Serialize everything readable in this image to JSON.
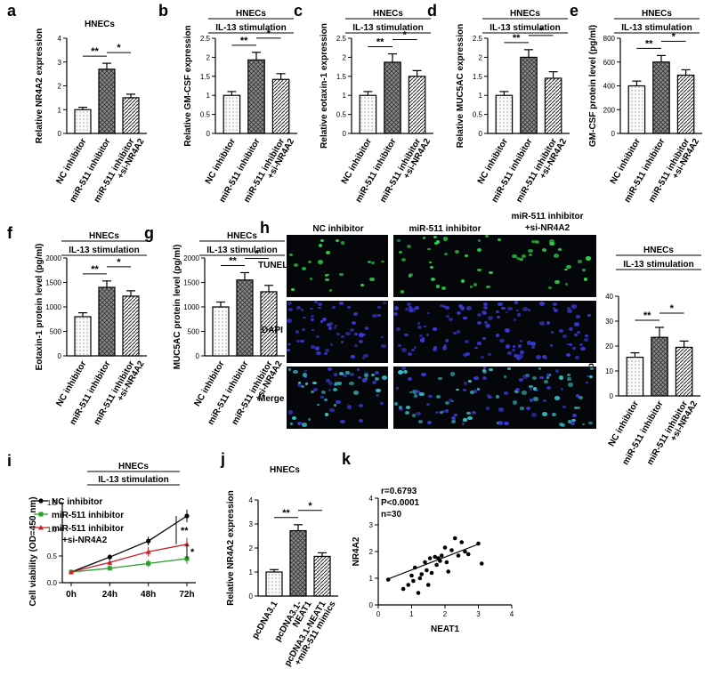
{
  "colors": {
    "nc": "#e9e9e9",
    "mir": "#8a8a8a",
    "si": "#d2d2d2",
    "line_nc": "#000000",
    "line_mir": "#2aa02a",
    "line_si": "#c8202a",
    "tunel": "#2bd64a",
    "dapi": "#3a3ad8",
    "merge": "#37c0c8"
  },
  "panels": {
    "a": "a",
    "b": "b",
    "c": "c",
    "d": "d",
    "e": "e",
    "f": "f",
    "g": "g",
    "h": "h",
    "i": "i",
    "j": "j",
    "k": "k"
  },
  "common": {
    "hnecs": "HNECs",
    "stim": "IL-13 stimulation",
    "cats3": [
      "NC inhibitor",
      "miR-511 inhibitor",
      "miR-511 inhibitor",
      "+si-NR4A2"
    ]
  },
  "sig": {
    "double": "**",
    "single": "*"
  },
  "h": {
    "col_headers": [
      "NC inhibitor",
      "miR-511 inhibitor",
      "miR-511 inhibitor",
      "+si-NR4A2"
    ],
    "row_labels": [
      "TUNEL",
      "DAPI",
      "Merge"
    ]
  },
  "j_cats": [
    "pcDNA3.1",
    "pcDNA3.1-",
    "NEAT1",
    "pcDNA3.1-NEAT1",
    "+miR-511 mimics"
  ],
  "k_stats": [
    "r=0.6793",
    "P<0.0001",
    "n=30"
  ],
  "chart_data": [
    {
      "panel": "a",
      "type": "bar",
      "title": "HNECs",
      "ylabel": "Relative NR4A2 expression",
      "categories": [
        "NC inhibitor",
        "miR-511 inhibitor",
        "miR-511 inhibitor +si-NR4A2"
      ],
      "values": [
        1.0,
        2.7,
        1.5
      ],
      "errors": [
        0.1,
        0.25,
        0.15
      ],
      "ylim": [
        0,
        4
      ],
      "yticks": [
        0,
        1,
        2,
        3,
        4
      ]
    },
    {
      "panel": "b",
      "type": "bar",
      "title": "HNECs",
      "subtitle": "IL-13 stimulation",
      "ylabel": "Relative GM-CSF expression",
      "categories": [
        "NC inhibitor",
        "miR-511 inhibitor",
        "miR-511 inhibitor +si-NR4A2"
      ],
      "values": [
        1.0,
        1.93,
        1.42
      ],
      "errors": [
        0.1,
        0.2,
        0.15
      ],
      "ylim": [
        0,
        2.5
      ],
      "yticks": [
        0.0,
        0.5,
        1.0,
        1.5,
        2.0,
        2.5
      ]
    },
    {
      "panel": "c",
      "type": "bar",
      "title": "HNECs",
      "subtitle": "IL-13 stimulation",
      "ylabel": "Relative eotaxin-1 expression",
      "categories": [
        "NC inhibitor",
        "miR-511 inhibitor",
        "miR-511 inhibitor +si-NR4A2"
      ],
      "values": [
        1.0,
        1.87,
        1.5
      ],
      "errors": [
        0.1,
        0.22,
        0.15
      ],
      "ylim": [
        0,
        2.5
      ],
      "yticks": [
        0.0,
        0.5,
        1.0,
        1.5,
        2.0,
        2.5
      ]
    },
    {
      "panel": "d",
      "type": "bar",
      "title": "HNECs",
      "subtitle": "IL-13 stimulation",
      "ylabel": "Relative MUC5AC expression",
      "categories": [
        "NC inhibitor",
        "miR-511 inhibitor",
        "miR-511 inhibitor +si-NR4A2"
      ],
      "values": [
        1.0,
        2.0,
        1.45
      ],
      "errors": [
        0.1,
        0.2,
        0.17
      ],
      "ylim": [
        0,
        2.5
      ],
      "yticks": [
        0.0,
        0.5,
        1.0,
        1.5,
        2.0,
        2.5
      ]
    },
    {
      "panel": "e",
      "type": "bar",
      "title": "HNECs",
      "subtitle": "IL-13 stimulation",
      "ylabel": "GM-CSF protein level (pg/ml)",
      "categories": [
        "NC inhibitor",
        "miR-511 inhibitor",
        "miR-511 inhibitor +si-NR4A2"
      ],
      "values": [
        400,
        600,
        490
      ],
      "errors": [
        40,
        55,
        45
      ],
      "ylim": [
        0,
        800
      ],
      "yticks": [
        0,
        200,
        400,
        600,
        800
      ]
    },
    {
      "panel": "f",
      "type": "bar",
      "title": "HNECs",
      "subtitle": "IL-13 stimulation",
      "ylabel": "Eotaxin-1 protein level (pg/ml)",
      "categories": [
        "NC inhibitor",
        "miR-511 inhibitor",
        "miR-511 inhibitor +si-NR4A2"
      ],
      "values": [
        800,
        1400,
        1220
      ],
      "errors": [
        80,
        130,
        110
      ],
      "ylim": [
        0,
        2000
      ],
      "yticks": [
        0,
        500,
        1000,
        1500,
        2000
      ]
    },
    {
      "panel": "g",
      "type": "bar",
      "title": "HNECs",
      "subtitle": "IL-13 stimulation",
      "ylabel": "MUC5AC protein level (pg/ml)",
      "categories": [
        "NC inhibitor",
        "miR-511 inhibitor",
        "miR-511 inhibitor +si-NR4A2"
      ],
      "values": [
        1000,
        1550,
        1310
      ],
      "errors": [
        100,
        150,
        130
      ],
      "ylim": [
        0,
        2000
      ],
      "yticks": [
        0,
        500,
        1000,
        1500,
        2000
      ]
    },
    {
      "panel": "h",
      "type": "bar",
      "title": "HNECs",
      "subtitle": "IL-13 stimulation",
      "ylabel": "Apoptotic (%)",
      "categories": [
        "NC inhibitor",
        "miR-511 inhibitor",
        "miR-511 inhibitor +si-NR4A2"
      ],
      "values": [
        15.5,
        23.5,
        19.5
      ],
      "errors": [
        1.8,
        4,
        2.5
      ],
      "ylim": [
        0,
        40
      ],
      "yticks": [
        0,
        10,
        20,
        30,
        40
      ]
    },
    {
      "panel": "i",
      "type": "line",
      "title": "HNECs",
      "subtitle": "IL-13 stimulation",
      "ylabel": "Cell viability (OD=450 nm)",
      "x": [
        "0h",
        "24h",
        "48h",
        "72h"
      ],
      "ylim": [
        0,
        1.5
      ],
      "yticks": [
        0.0,
        0.5,
        1.0,
        1.5
      ],
      "series": [
        {
          "name": "NC inhibitor",
          "values": [
            0.2,
            0.48,
            0.78,
            1.25
          ],
          "errors": [
            0.02,
            0.05,
            0.08,
            0.12
          ]
        },
        {
          "name": "miR-511 inhibitor",
          "values": [
            0.2,
            0.27,
            0.36,
            0.45
          ],
          "errors": [
            0.02,
            0.04,
            0.07,
            0.1
          ]
        },
        {
          "name": "miR-511 inhibitor\n+si-NR4A2",
          "values": [
            0.2,
            0.38,
            0.58,
            0.72
          ],
          "errors": [
            0.02,
            0.06,
            0.09,
            0.12
          ]
        }
      ],
      "legend_lines": [
        "NC inhibitor",
        "miR-511 inhibitor",
        "miR-511 inhibitor",
        "+si-NR4A2"
      ]
    },
    {
      "panel": "j",
      "type": "bar",
      "title": "HNECs",
      "ylabel": "Relative NR4A2 expression",
      "categories": [
        "pcDNA3.1",
        "pcDNA3.1-NEAT1",
        "pcDNA3.1-NEAT1 +miR-511 mimics"
      ],
      "values": [
        1.0,
        2.72,
        1.65
      ],
      "errors": [
        0.1,
        0.25,
        0.15
      ],
      "ylim": [
        0,
        4
      ],
      "yticks": [
        0,
        1,
        2,
        3,
        4
      ]
    },
    {
      "panel": "k",
      "type": "scatter",
      "xlabel": "NEAT1",
      "ylabel": "NR4A2",
      "xlim": [
        0,
        4
      ],
      "ylim": [
        0,
        4
      ],
      "xticks": [
        0,
        1,
        2,
        3,
        4
      ],
      "yticks": [
        0,
        1,
        2,
        3,
        4
      ],
      "points": [
        [
          0.3,
          0.95
        ],
        [
          0.75,
          0.6
        ],
        [
          0.9,
          0.75
        ],
        [
          1.0,
          1.1
        ],
        [
          1.05,
          0.9
        ],
        [
          1.1,
          1.4
        ],
        [
          1.2,
          0.45
        ],
        [
          1.25,
          1.0
        ],
        [
          1.3,
          1.15
        ],
        [
          1.4,
          1.6
        ],
        [
          1.45,
          1.3
        ],
        [
          1.5,
          0.75
        ],
        [
          1.55,
          1.75
        ],
        [
          1.6,
          1.2
        ],
        [
          1.7,
          1.8
        ],
        [
          1.75,
          1.5
        ],
        [
          1.8,
          1.75
        ],
        [
          1.85,
          1.65
        ],
        [
          1.9,
          1.85
        ],
        [
          2.0,
          2.15
        ],
        [
          2.05,
          1.6
        ],
        [
          2.1,
          1.25
        ],
        [
          2.2,
          2.05
        ],
        [
          2.3,
          2.5
        ],
        [
          2.4,
          1.85
        ],
        [
          2.5,
          2.35
        ],
        [
          2.6,
          2.0
        ],
        [
          2.7,
          1.9
        ],
        [
          3.0,
          2.3
        ],
        [
          3.1,
          1.55
        ]
      ],
      "fit": [
        [
          0.25,
          0.95
        ],
        [
          3.05,
          2.3
        ]
      ]
    }
  ]
}
